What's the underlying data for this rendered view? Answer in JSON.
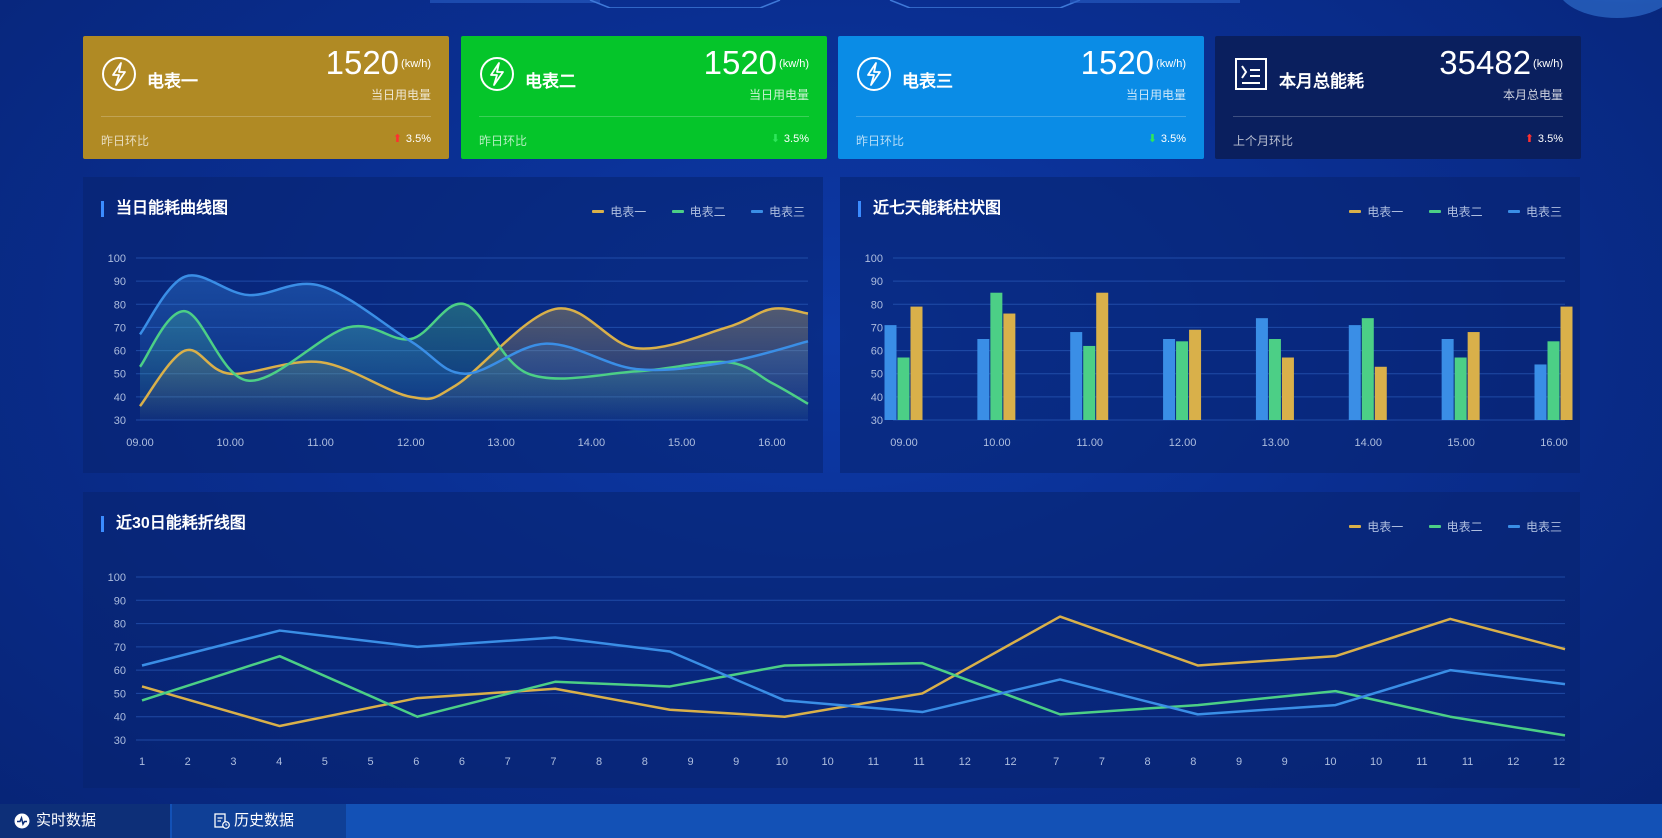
{
  "cards": [
    {
      "name": "电表一",
      "value": "1520",
      "unit": "(kw/h)",
      "sub": "当日用电量",
      "foot": "昨日环比",
      "trend": "3.5%",
      "dir": "up",
      "bg": "#b08a24"
    },
    {
      "name": "电表二",
      "value": "1520",
      "unit": "(kw/h)",
      "sub": "当日用电量",
      "foot": "昨日环比",
      "trend": "3.5%",
      "dir": "down",
      "bg": "#05c52a"
    },
    {
      "name": "电表三",
      "value": "1520",
      "unit": "(kw/h)",
      "sub": "当日用电量",
      "foot": "昨日环比",
      "trend": "3.5%",
      "dir": "down",
      "bg": "#0a8ce6"
    },
    {
      "name": "本月总能耗",
      "value": "35482",
      "unit": "(kw/h)",
      "sub": "本月总电量",
      "foot": "上个月环比",
      "trend": "3.5%",
      "dir": "up",
      "bg": "#0a1f5e"
    }
  ],
  "colors": {
    "meter1": "#d9b04a",
    "meter2": "#4ccf86",
    "meter3": "#3a8ee6",
    "up": "#ff3030",
    "down": "#2ee65a"
  },
  "legend": [
    "电表一",
    "电表二",
    "电表三"
  ],
  "panels": {
    "daily": {
      "title": "当日能耗曲线图"
    },
    "weekly": {
      "title": "近七天能耗柱状图"
    },
    "monthly": {
      "title": "近30日能耗折线图"
    }
  },
  "chart_data": [
    {
      "type": "line",
      "title": "当日能耗曲线图",
      "categories": [
        "09.00",
        "10.00",
        "11.00",
        "12.00",
        "13.00",
        "14.00",
        "15.00",
        "16.00"
      ],
      "ylim": [
        30,
        100
      ],
      "yticks": [
        100,
        90,
        80,
        70,
        60,
        50,
        40,
        30
      ],
      "series": [
        {
          "name": "电表一",
          "x": [
            0,
            0.5,
            1,
            2,
            3,
            3.5,
            4.6,
            5.5,
            6.5,
            7,
            7.4
          ],
          "values": [
            36,
            60,
            50,
            55,
            40,
            45,
            78,
            61,
            70,
            78,
            76
          ]
        },
        {
          "name": "电表二",
          "x": [
            0,
            0.5,
            1.2,
            2.3,
            3,
            3.6,
            4.3,
            5.5,
            6.5,
            7,
            7.4
          ],
          "values": [
            53,
            77,
            47,
            70,
            65,
            80,
            50,
            51,
            55,
            46,
            37
          ]
        },
        {
          "name": "电表三",
          "x": [
            0,
            0.5,
            1.2,
            2,
            3,
            3.6,
            4.5,
            5.5,
            6.5,
            7.4
          ],
          "values": [
            67,
            92,
            84,
            88,
            64,
            50,
            63,
            52,
            55,
            64
          ]
        }
      ]
    },
    {
      "type": "bar",
      "title": "近七天能耗柱状图",
      "categories": [
        "09.00",
        "10.00",
        "11.00",
        "12.00",
        "13.00",
        "14.00",
        "15.00",
        "16.00"
      ],
      "ylim": [
        30,
        100
      ],
      "yticks": [
        100,
        90,
        80,
        70,
        60,
        50,
        40,
        30
      ],
      "series": [
        {
          "name": "电表三",
          "values": [
            71,
            65,
            68,
            65,
            74,
            71,
            65,
            54
          ]
        },
        {
          "name": "电表二",
          "values": [
            57,
            85,
            62,
            64,
            65,
            74,
            57,
            64
          ]
        },
        {
          "name": "电表一",
          "values": [
            79,
            76,
            85,
            69,
            57,
            53,
            68,
            79
          ]
        }
      ]
    },
    {
      "type": "line",
      "title": "近30日能耗折线图",
      "categories": [
        "1",
        "2",
        "3",
        "4",
        "5",
        "5",
        "6",
        "6",
        "7",
        "7",
        "8",
        "8",
        "9",
        "9",
        "10",
        "10",
        "11",
        "11",
        "12",
        "12",
        "7",
        "7",
        "8",
        "8",
        "9",
        "9",
        "10",
        "10",
        "11",
        "11",
        "12",
        "12"
      ],
      "ylim": [
        30,
        100
      ],
      "yticks": [
        100,
        90,
        80,
        70,
        60,
        50,
        40,
        30
      ],
      "series": [
        {
          "name": "电表一",
          "x": [
            0,
            3,
            6,
            9,
            11.5,
            14,
            17,
            20,
            23,
            26,
            28.5,
            31
          ],
          "values": [
            53,
            36,
            48,
            52,
            43,
            40,
            50,
            83,
            62,
            66,
            82,
            69
          ]
        },
        {
          "name": "电表二",
          "x": [
            0,
            3,
            6,
            9,
            11.5,
            14,
            17,
            20,
            23,
            26,
            28.5,
            31
          ],
          "values": [
            47,
            66,
            40,
            55,
            53,
            62,
            63,
            41,
            45,
            51,
            40,
            32
          ]
        },
        {
          "name": "电表三",
          "x": [
            0,
            3,
            6,
            9,
            11.5,
            14,
            17,
            20,
            23,
            26,
            28.5,
            31
          ],
          "values": [
            62,
            77,
            70,
            74,
            68,
            47,
            42,
            56,
            41,
            45,
            60,
            54
          ]
        }
      ]
    }
  ],
  "tabs": [
    {
      "label": "实时数据"
    },
    {
      "label": "历史数据"
    }
  ]
}
